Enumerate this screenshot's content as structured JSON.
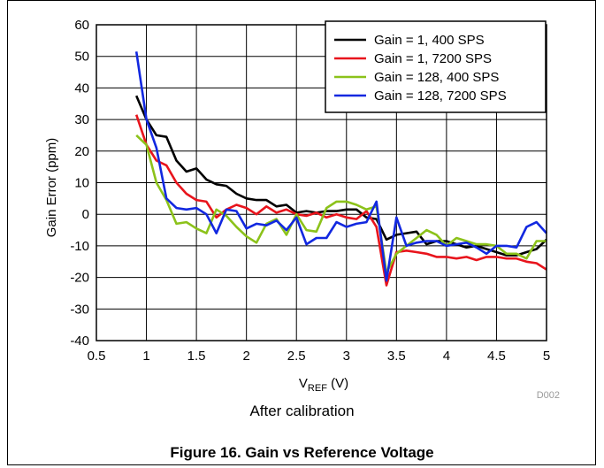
{
  "chart_data": {
    "type": "line",
    "title": "",
    "xlabel_main": "V",
    "xlabel_sub": "REF",
    "xlabel_unit": " (V)",
    "ylabel": "Gain Error (ppm)",
    "xlim": [
      0.5,
      5
    ],
    "ylim": [
      -40,
      60
    ],
    "x_ticks": [
      "0.5",
      "1",
      "1.5",
      "2",
      "2.5",
      "3",
      "3.5",
      "4",
      "4.5",
      "5"
    ],
    "y_ticks": [
      "60",
      "50",
      "40",
      "30",
      "20",
      "10",
      "0",
      "-10",
      "-20",
      "-30",
      "-40"
    ],
    "grid": true,
    "legend_position": "top-right",
    "watermark": "D002",
    "series": [
      {
        "name": "Gain = 1, 400 SPS",
        "color": "#000000",
        "x": [
          0.9,
          1.0,
          1.1,
          1.2,
          1.3,
          1.4,
          1.5,
          1.6,
          1.7,
          1.8,
          1.9,
          2.0,
          2.1,
          2.2,
          2.3,
          2.4,
          2.5,
          2.6,
          2.7,
          2.8,
          2.9,
          3.0,
          3.1,
          3.2,
          3.3,
          3.4,
          3.5,
          3.6,
          3.7,
          3.8,
          3.9,
          4.0,
          4.1,
          4.2,
          4.3,
          4.4,
          4.5,
          4.6,
          4.7,
          4.8,
          4.9,
          5.0
        ],
        "y": [
          37.5,
          30,
          25,
          24.5,
          17,
          13.5,
          14.5,
          11,
          9.5,
          9,
          6.5,
          5,
          4.5,
          4.5,
          2.5,
          3,
          0.5,
          1,
          0.5,
          1,
          1,
          1.5,
          1.5,
          -1,
          -1.5,
          -8,
          -6.5,
          -6,
          -5.5,
          -9.5,
          -8.5,
          -8.5,
          -9.5,
          -10.5,
          -10,
          -11,
          -12,
          -13,
          -13,
          -12,
          -11,
          -8
        ]
      },
      {
        "name": "Gain = 1, 7200 SPS",
        "color": "#e8141c",
        "x": [
          0.9,
          1.0,
          1.1,
          1.2,
          1.3,
          1.4,
          1.5,
          1.6,
          1.7,
          1.8,
          1.9,
          2.0,
          2.1,
          2.2,
          2.3,
          2.4,
          2.5,
          2.6,
          2.7,
          2.8,
          2.9,
          3.0,
          3.1,
          3.2,
          3.3,
          3.4,
          3.5,
          3.6,
          3.7,
          3.8,
          3.9,
          4.0,
          4.1,
          4.2,
          4.3,
          4.4,
          4.5,
          4.6,
          4.7,
          4.8,
          4.9,
          5.0
        ],
        "y": [
          31.5,
          22,
          17,
          15.5,
          10,
          6.5,
          4.5,
          4,
          -1,
          1.5,
          3,
          2,
          0,
          2.5,
          0.5,
          1.5,
          0,
          -0.5,
          0.5,
          -1,
          0,
          -1,
          -1.5,
          1,
          -4,
          -22.5,
          -12,
          -11.5,
          -12,
          -12.5,
          -13.5,
          -13.5,
          -14,
          -13.5,
          -14.5,
          -13.5,
          -13.5,
          -14,
          -14,
          -15,
          -15.5,
          -17.5
        ]
      },
      {
        "name": "Gain = 128, 400 SPS",
        "color": "#8cc21a",
        "x": [
          0.9,
          1.0,
          1.1,
          1.2,
          1.3,
          1.4,
          1.5,
          1.6,
          1.7,
          1.8,
          1.9,
          2.0,
          2.1,
          2.2,
          2.3,
          2.4,
          2.5,
          2.6,
          2.7,
          2.8,
          2.9,
          3.0,
          3.1,
          3.2,
          3.3,
          3.4,
          3.5,
          3.6,
          3.7,
          3.8,
          3.9,
          4.0,
          4.1,
          4.2,
          4.3,
          4.4,
          4.5,
          4.6,
          4.7,
          4.8,
          4.9,
          5.0
        ],
        "y": [
          25,
          22,
          10,
          4.5,
          -3,
          -2.5,
          -4.5,
          -6,
          1.5,
          -0.5,
          -4,
          -7,
          -9,
          -3,
          -1.5,
          -6.5,
          0,
          -5,
          -5.5,
          2,
          4,
          4,
          3,
          1.5,
          2.5,
          -18.5,
          -12.5,
          -10,
          -7.5,
          -5,
          -6.5,
          -10,
          -7.5,
          -8.5,
          -9.5,
          -9.5,
          -10,
          -12.5,
          -12.5,
          -14,
          -8.5,
          -8.5
        ]
      },
      {
        "name": "Gain = 128, 7200 SPS",
        "color": "#1228e0",
        "x": [
          0.9,
          1.0,
          1.1,
          1.2,
          1.3,
          1.4,
          1.5,
          1.6,
          1.7,
          1.8,
          1.9,
          2.0,
          2.1,
          2.2,
          2.3,
          2.4,
          2.5,
          2.6,
          2.7,
          2.8,
          2.9,
          3.0,
          3.1,
          3.2,
          3.3,
          3.4,
          3.5,
          3.6,
          3.7,
          3.8,
          3.9,
          4.0,
          4.1,
          4.2,
          4.3,
          4.4,
          4.5,
          4.6,
          4.7,
          4.8,
          4.9,
          5.0
        ],
        "y": [
          51.5,
          30,
          21,
          5,
          2,
          1.5,
          2,
          0,
          -6,
          1.5,
          1,
          -4.5,
          -3,
          -3.5,
          -2,
          -5,
          -1,
          -9.5,
          -7.5,
          -7.5,
          -2.5,
          -4,
          -3,
          -2.5,
          4,
          -21,
          -1,
          -10,
          -9,
          -8.5,
          -8.5,
          -10,
          -9.5,
          -9,
          -10.5,
          -12.5,
          -10,
          -10,
          -10.5,
          -4,
          -2.5,
          -6
        ]
      }
    ]
  },
  "captions": {
    "sub": "After calibration",
    "figure": "Figure 16. Gain vs Reference Voltage"
  }
}
